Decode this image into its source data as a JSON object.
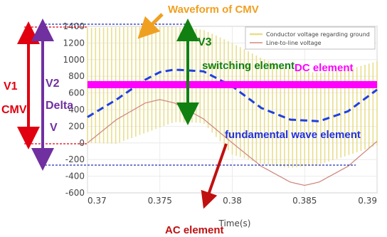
{
  "colors": {
    "conductor": "#e8de8c",
    "line_to_line": "#d08a80",
    "fundamental": "#2040e0",
    "dc_bar": "#ff00ff",
    "red": "#e00010",
    "purple": "#7030a0",
    "green": "#108010",
    "orange": "#f0a020",
    "blue_text": "#2030e0",
    "dark_red": "#c01010",
    "dark_blue_dot": "#2030b0",
    "axis": "#7a7a7a"
  },
  "annotations": {
    "waveform_of_cmv": "Waveform  of CMV",
    "v1": "V1",
    "cmv": "CMV",
    "v2": "V2",
    "delta": "Delta",
    "v": "V",
    "v3": "V3",
    "switching_element": "switching element",
    "dc_element": "DC element",
    "fundamental_wave_element": "fundamental wave element",
    "ac_element": "AC element"
  },
  "chart_data": {
    "type": "line",
    "title": "",
    "xlabel": "Time(s)",
    "ylabel": "",
    "xlim": [
      0.37,
      0.39
    ],
    "ylim": [
      -600,
      1400
    ],
    "x_ticks": [
      0.37,
      0.375,
      0.38,
      0.385,
      0.39
    ],
    "x_tick_labels": [
      "0.37",
      "0.375",
      "0.38",
      "0.385",
      "0.39"
    ],
    "y_ticks": [
      -600,
      -400,
      -200,
      0,
      200,
      400,
      600,
      800,
      1000,
      1200,
      1400
    ],
    "y_tick_labels": [
      "-600",
      "-400",
      "-200",
      "0",
      "200",
      "400",
      "600",
      "800",
      "1000",
      "1200",
      "1400"
    ],
    "legend_position": "top-right",
    "series": [
      {
        "name": "Conductor voltage regarding ground",
        "style": "vertical switching bars",
        "envelope_x": [
          0.37,
          0.372,
          0.374,
          0.376,
          0.378,
          0.38,
          0.382,
          0.384,
          0.386,
          0.388,
          0.39
        ],
        "envelope_upper": [
          1380,
          1390,
          1395,
          1395,
          1360,
          1200,
          1020,
          880,
          840,
          880,
          980
        ],
        "envelope_lower": [
          0,
          -10,
          120,
          250,
          240,
          -140,
          -250,
          -300,
          -260,
          -150,
          -30
        ]
      },
      {
        "name": "Line-to-line voltage",
        "x": [
          0.37,
          0.372,
          0.374,
          0.375,
          0.376,
          0.378,
          0.38,
          0.382,
          0.384,
          0.385,
          0.386,
          0.388,
          0.39
        ],
        "y": [
          0,
          280,
          480,
          520,
          480,
          290,
          0,
          -280,
          -470,
          -510,
          -470,
          -280,
          20
        ]
      },
      {
        "name": "",
        "style": "dashed",
        "x": [
          0.37,
          0.372,
          0.374,
          0.375,
          0.376,
          0.378,
          0.38,
          0.382,
          0.384,
          0.386,
          0.388,
          0.39
        ],
        "y": [
          310,
          520,
          760,
          850,
          880,
          860,
          680,
          420,
          280,
          260,
          380,
          640
        ]
      },
      {
        "name": "",
        "style": "thick horizontal band",
        "y": 700
      }
    ]
  }
}
